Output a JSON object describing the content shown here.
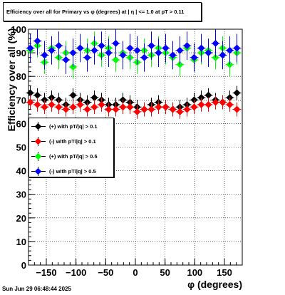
{
  "title": "Efficiency over all for Primary vs φ (degrees) at |  η  | <= 1.0 at pT > 0.11",
  "timestamp": "Sun Jun 29 06:48:44 2025",
  "chart_data": {
    "type": "scatter",
    "xlabel": "φ (degrees)",
    "ylabel": "Efficiency over all (%)",
    "xlim": [
      -180,
      180
    ],
    "ylim": [
      0,
      100
    ],
    "x_ticks": [
      -150,
      -100,
      -50,
      0,
      50,
      100,
      150
    ],
    "x_tick_labels": [
      "−150",
      "−100",
      "−50",
      "0",
      "50",
      "100",
      "150"
    ],
    "y_ticks": [
      0,
      10,
      20,
      30,
      40,
      50,
      60,
      70,
      80,
      90,
      100
    ],
    "grid": true,
    "legend_position": "left-middle",
    "series": [
      {
        "name": "(+) with pT/|q| > 0.1",
        "color": "#000000",
        "x": [
          -177,
          -165,
          -153,
          -141,
          -129,
          -117,
          -105,
          -93,
          -81,
          -69,
          -57,
          -45,
          -33,
          -21,
          -9,
          3,
          15,
          27,
          39,
          51,
          63,
          75,
          87,
          99,
          111,
          123,
          135,
          147,
          159,
          171
        ],
        "y": [
          73,
          72,
          70,
          71,
          70,
          68,
          72,
          70,
          69,
          71,
          70,
          68,
          68,
          70,
          69,
          67,
          66,
          68,
          69,
          67,
          66,
          67,
          68,
          70,
          71,
          72,
          70,
          69,
          71,
          73
        ]
      },
      {
        "name": "(-) with pT/|q| > 0.1",
        "color": "#ff0000",
        "x": [
          -177,
          -165,
          -153,
          -141,
          -129,
          -117,
          -105,
          -93,
          -81,
          -69,
          -57,
          -45,
          -33,
          -21,
          -9,
          3,
          15,
          27,
          39,
          51,
          63,
          75,
          87,
          99,
          111,
          123,
          135,
          147,
          159,
          171
        ],
        "y": [
          69,
          68,
          67,
          68,
          67,
          66,
          67,
          68,
          66,
          67,
          68,
          66,
          66,
          67,
          67,
          65,
          66,
          66,
          67,
          67,
          66,
          65,
          66,
          67,
          68,
          68,
          69,
          69,
          68,
          66
        ]
      },
      {
        "name": "(+) with pT/|q| > 0.5",
        "color": "#00ff00",
        "x": [
          -177,
          -165,
          -153,
          -141,
          -129,
          -117,
          -105,
          -93,
          -81,
          -69,
          -57,
          -45,
          -33,
          -21,
          -9,
          3,
          15,
          27,
          39,
          51,
          63,
          75,
          87,
          99,
          111,
          123,
          135,
          147,
          159,
          171
        ],
        "y": [
          91,
          93,
          86,
          92,
          88,
          90,
          84,
          92,
          91,
          94,
          89,
          92,
          87,
          90,
          88,
          86,
          91,
          89,
          92,
          90,
          88,
          85,
          92,
          87,
          90,
          91,
          88,
          92,
          85,
          90
        ]
      },
      {
        "name": "(-) with pT/|q| > 0.5",
        "color": "#0000ff",
        "x": [
          -177,
          -165,
          -153,
          -141,
          -129,
          -117,
          -105,
          -93,
          -81,
          -69,
          -57,
          -45,
          -33,
          -21,
          -9,
          3,
          15,
          27,
          39,
          51,
          63,
          75,
          87,
          99,
          111,
          123,
          135,
          147,
          159,
          171
        ],
        "y": [
          92,
          95,
          89,
          91,
          93,
          87,
          90,
          92,
          88,
          91,
          93,
          90,
          94,
          89,
          92,
          91,
          88,
          93,
          90,
          92,
          89,
          91,
          93,
          88,
          92,
          90,
          94,
          89,
          91,
          92
        ]
      }
    ]
  }
}
